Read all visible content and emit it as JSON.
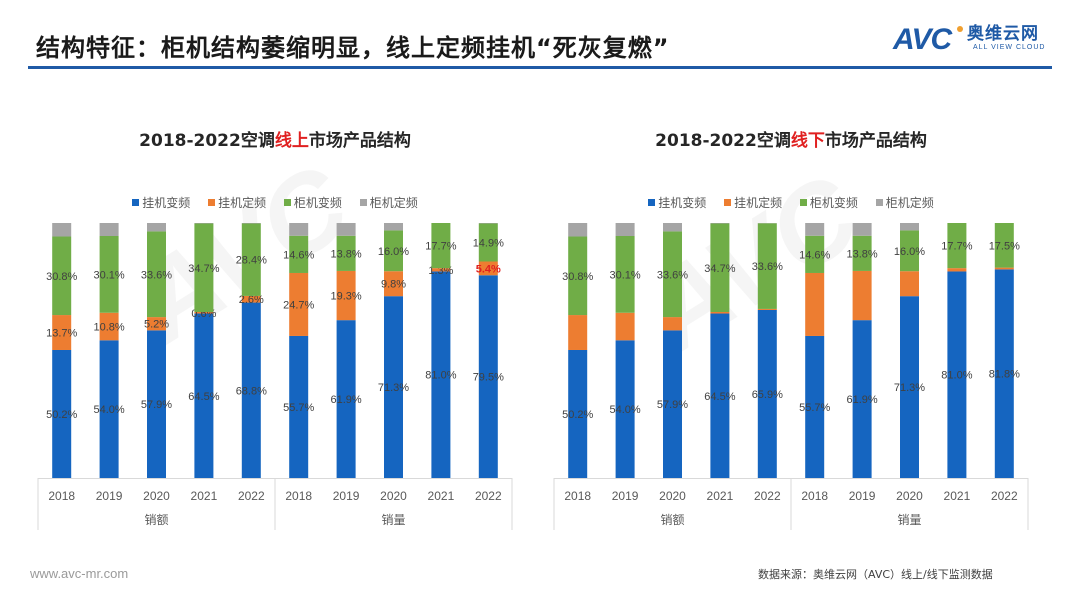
{
  "header": {
    "title": "结构特征：柜机结构萎缩明显，线上定频挂机“死灰复燃”",
    "logo_mark": "AVC",
    "logo_cn": "奥维云网",
    "logo_en": "ALL VIEW CLOUD"
  },
  "colors": {
    "title_rule": "#1f5aa6",
    "highlight": "#e02020"
  },
  "legend": [
    {
      "label": "挂机变频",
      "color": "#1565c0"
    },
    {
      "label": "挂机定频",
      "color": "#ed7d31"
    },
    {
      "label": "柜机变频",
      "color": "#70ad47"
    },
    {
      "label": "柜机定频",
      "color": "#a5a5a5"
    }
  ],
  "chart_data": [
    {
      "type": "bar",
      "stacked": true,
      "title_parts": [
        "2018-2022空调",
        "线上",
        "市场产品结构"
      ],
      "groups": [
        "销额",
        "销量"
      ],
      "categories": [
        "2018",
        "2019",
        "2020",
        "2021",
        "2022",
        "2018",
        "2019",
        "2020",
        "2021",
        "2022"
      ],
      "ylim": [
        0,
        100
      ],
      "legend_position": "top",
      "series": [
        {
          "name": "挂机变频",
          "values": [
            50.2,
            54.0,
            57.9,
            64.5,
            68.8,
            55.7,
            61.9,
            71.3,
            81.0,
            79.5
          ],
          "labels": [
            "50.2%",
            "54.0%",
            "57.9%",
            "64.5%",
            "68.8%",
            "55.7%",
            "61.9%",
            "71.3%",
            "81.0%",
            "79.5%"
          ]
        },
        {
          "name": "挂机定频",
          "values": [
            13.7,
            10.8,
            5.2,
            0.6,
            2.6,
            24.7,
            19.3,
            9.8,
            1.3,
            5.4
          ],
          "labels": [
            "13.7%",
            "10.8%",
            "5.2%",
            "0.6%",
            "2.6%",
            "24.7%",
            "19.3%",
            "9.8%",
            "1.3%",
            "5.4%"
          ],
          "highlight_index": 9
        },
        {
          "name": "柜机变频",
          "values": [
            30.8,
            30.1,
            33.6,
            34.7,
            28.4,
            14.6,
            13.8,
            16.0,
            17.7,
            14.9
          ],
          "labels": [
            "30.8%",
            "30.1%",
            "33.6%",
            "34.7%",
            "28.4%",
            "14.6%",
            "13.8%",
            "16.0%",
            "17.7%",
            "14.9%"
          ]
        },
        {
          "name": "柜机定频",
          "values": [
            5.3,
            5.1,
            3.3,
            0.2,
            0.2,
            5.0,
            5.0,
            2.9,
            0.0,
            0.2
          ],
          "labels": []
        }
      ]
    },
    {
      "type": "bar",
      "stacked": true,
      "title_parts": [
        "2018-2022空调",
        "线下",
        "市场产品结构"
      ],
      "groups": [
        "销额",
        "销量"
      ],
      "categories": [
        "2018",
        "2019",
        "2020",
        "2021",
        "2022",
        "2018",
        "2019",
        "2020",
        "2021",
        "2022"
      ],
      "ylim": [
        0,
        100
      ],
      "legend_position": "top",
      "series": [
        {
          "name": "挂机变频",
          "values": [
            50.2,
            54.0,
            57.9,
            64.5,
            65.9,
            55.7,
            61.9,
            71.3,
            81.0,
            81.8
          ],
          "labels": [
            "50.2%",
            "54.0%",
            "57.9%",
            "64.5%",
            "65.9%",
            "55.7%",
            "61.9%",
            "71.3%",
            "81.0%",
            "81.8%"
          ]
        },
        {
          "name": "挂机定频",
          "values": [
            13.7,
            10.8,
            5.2,
            0.6,
            0.4,
            24.7,
            19.3,
            9.8,
            1.3,
            0.7
          ],
          "labels": []
        },
        {
          "name": "柜机变频",
          "values": [
            30.8,
            30.1,
            33.6,
            34.7,
            33.6,
            14.6,
            13.8,
            16.0,
            17.7,
            17.5
          ],
          "labels": [
            "30.8%",
            "30.1%",
            "33.6%",
            "34.7%",
            "33.6%",
            "14.6%",
            "13.8%",
            "16.0%",
            "17.7%",
            "17.5%"
          ]
        },
        {
          "name": "柜机定频",
          "values": [
            5.3,
            5.1,
            3.3,
            0.2,
            0.1,
            5.0,
            5.0,
            2.9,
            0.0,
            0.0
          ],
          "labels": []
        }
      ]
    }
  ],
  "footer": {
    "url": "www.avc-mr.com",
    "source": "数据来源：奥维云网（AVC）线上/线下监测数据"
  }
}
